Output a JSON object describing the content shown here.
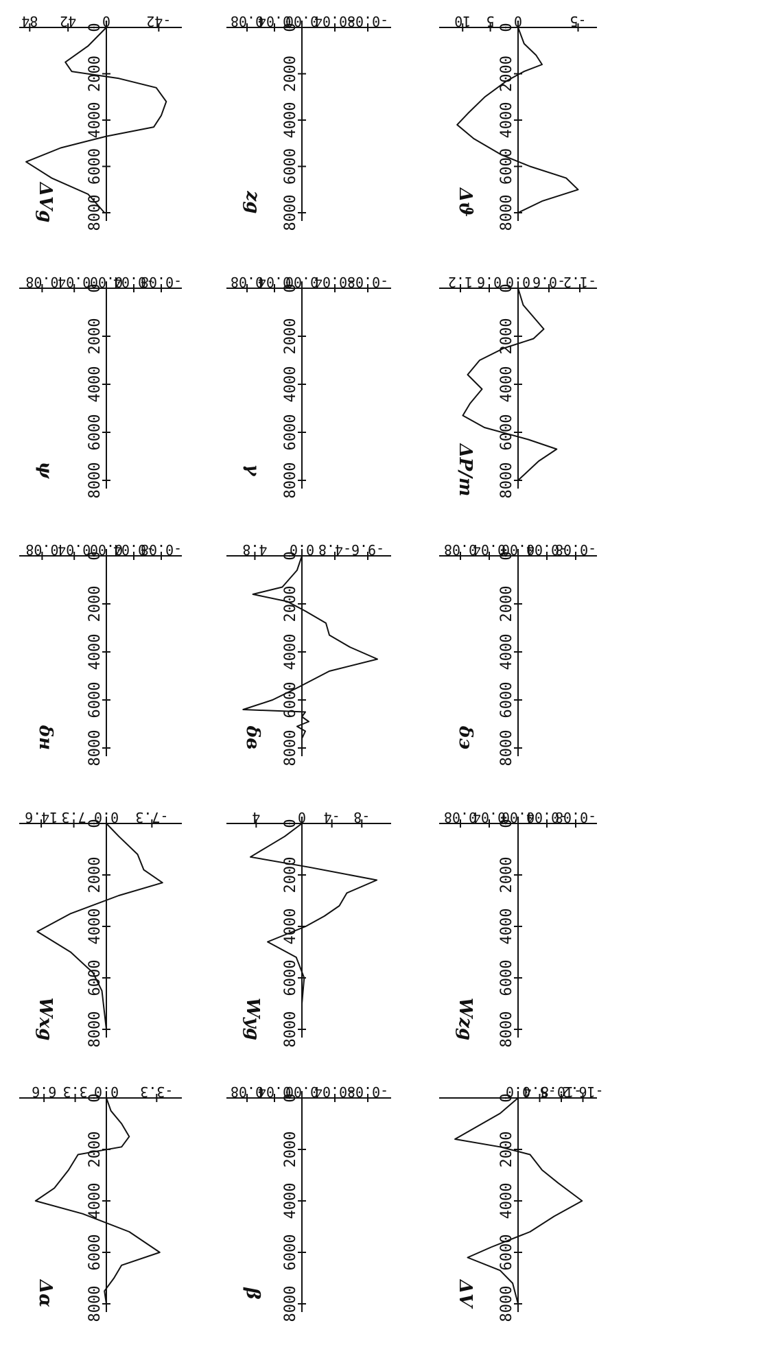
{
  "chart_data": [
    {
      "type": "line",
      "title": "ΔVg",
      "ylabel": "ΔVg",
      "x_ticks": [
        "0",
        "2000",
        "4000",
        "6000",
        "8000"
      ],
      "y_ticks": [
        "-42",
        "0",
        "42",
        "84"
      ],
      "xlim": [
        0,
        8000
      ],
      "ylim": [
        -55,
        88
      ],
      "series": [
        {
          "values": [
            [
              0,
              0
            ],
            [
              800,
              20
            ],
            [
              1500,
              45
            ],
            [
              1900,
              38
            ],
            [
              2200,
              -10
            ],
            [
              2600,
              -40
            ],
            [
              3200,
              -48
            ],
            [
              3800,
              -44
            ],
            [
              4300,
              -38
            ],
            [
              4700,
              0
            ],
            [
              5200,
              50
            ],
            [
              5800,
              88
            ],
            [
              6500,
              60
            ],
            [
              7200,
              20
            ],
            [
              8000,
              2
            ]
          ]
        }
      ]
    },
    {
      "type": "line",
      "title": "ψ",
      "ylabel": "ψ",
      "x_ticks": [
        "0",
        "2000",
        "4000",
        "6000",
        "8000"
      ],
      "y_ticks": [
        "-0.08",
        "-0.04",
        "0.00",
        "0.04",
        "0.08"
      ],
      "xlim": [
        0,
        8000
      ],
      "ylim": [
        -0.1,
        0.1
      ],
      "series": [
        {
          "values": [
            [
              0,
              0
            ],
            [
              8000,
              0
            ]
          ]
        }
      ]
    },
    {
      "type": "line",
      "title": "δн",
      "ylabel": "δн",
      "x_ticks": [
        "0",
        "2000",
        "4000",
        "6000",
        "8000"
      ],
      "y_ticks": [
        "-0.08",
        "-0.04",
        "0.00",
        "0.04",
        "0.08"
      ],
      "xlim": [
        0,
        8000
      ],
      "ylim": [
        -0.1,
        0.1
      ],
      "series": [
        {
          "values": [
            [
              0,
              0
            ],
            [
              8000,
              0
            ]
          ]
        }
      ]
    },
    {
      "type": "line",
      "title": "Wxg",
      "ylabel": "Wxg",
      "x_ticks": [
        "0",
        "2000",
        "4000",
        "6000",
        "8000"
      ],
      "y_ticks": [
        "-7.3",
        "0.0",
        "7.3",
        "14.6"
      ],
      "xlim": [
        0,
        8000
      ],
      "ylim": [
        -11,
        18
      ],
      "series": [
        {
          "values": [
            [
              0,
              0
            ],
            [
              500,
              -2
            ],
            [
              1200,
              -5
            ],
            [
              1800,
              -6
            ],
            [
              2300,
              -9
            ],
            [
              2800,
              -2
            ],
            [
              3500,
              8
            ],
            [
              4200,
              15.5
            ],
            [
              5000,
              8
            ],
            [
              5800,
              3
            ],
            [
              6500,
              1
            ],
            [
              8000,
              0
            ]
          ]
        }
      ]
    },
    {
      "type": "line",
      "title": "Δα",
      "ylabel": "Δα",
      "x_ticks": [
        "0",
        "2000",
        "4000",
        "6000",
        "8000"
      ],
      "y_ticks": [
        "-3.3",
        "0.0",
        "3.3",
        "6.6"
      ],
      "xlim": [
        0,
        8000
      ],
      "ylim": [
        -4.5,
        8.5
      ],
      "series": [
        {
          "values": [
            [
              0,
              0
            ],
            [
              500,
              -0.3
            ],
            [
              1000,
              -1
            ],
            [
              1500,
              -1.5
            ],
            [
              1900,
              -1
            ],
            [
              2200,
              3
            ],
            [
              2800,
              4
            ],
            [
              3500,
              5.5
            ],
            [
              4000,
              7.5
            ],
            [
              4500,
              2.5
            ],
            [
              5200,
              -1.5
            ],
            [
              6000,
              -3.5
            ],
            [
              6500,
              -1
            ],
            [
              7000,
              -0.5
            ],
            [
              7500,
              0.2
            ],
            [
              8000,
              0
            ]
          ]
        }
      ]
    },
    {
      "type": "line",
      "title": "zg",
      "ylabel": "zg",
      "x_ticks": [
        "0",
        "2000",
        "4000",
        "6000",
        "8000"
      ],
      "y_ticks": [
        "-0.08",
        "-0.04",
        "0.00",
        "0.04",
        "0.08"
      ],
      "xlim": [
        0,
        8000
      ],
      "ylim": [
        -0.1,
        0.1
      ],
      "series": [
        {
          "values": [
            [
              0,
              0
            ],
            [
              8000,
              0
            ]
          ]
        }
      ]
    },
    {
      "type": "line",
      "title": "γ",
      "ylabel": "γ",
      "x_ticks": [
        "0",
        "2000",
        "4000",
        "6000",
        "8000"
      ],
      "y_ticks": [
        "-0.08",
        "-0.04",
        "0.00",
        "0.04",
        "0.08"
      ],
      "xlim": [
        0,
        8000
      ],
      "ylim": [
        -0.1,
        0.1
      ],
      "series": [
        {
          "values": [
            [
              0,
              0
            ],
            [
              8000,
              0
            ]
          ]
        }
      ]
    },
    {
      "type": "line",
      "title": "δв",
      "ylabel": "δв",
      "x_ticks": [
        "0",
        "2000",
        "4000",
        "6000",
        "8000"
      ],
      "y_ticks": [
        "-9.6",
        "-4.8",
        "0.0",
        "4.8"
      ],
      "xlim": [
        0,
        8000
      ],
      "ylim": [
        -12,
        7
      ],
      "series": [
        {
          "values": [
            [
              0,
              0
            ],
            [
              600,
              0.5
            ],
            [
              1300,
              2
            ],
            [
              1600,
              5
            ],
            [
              1900,
              1.5
            ],
            [
              2300,
              -0.5
            ],
            [
              2800,
              -3.5
            ],
            [
              3300,
              -4
            ],
            [
              3800,
              -7
            ],
            [
              4300,
              -11
            ],
            [
              4800,
              -4
            ],
            [
              5500,
              0.5
            ],
            [
              6000,
              3
            ],
            [
              6400,
              6
            ],
            [
              6500,
              -0.5
            ],
            [
              6700,
              0
            ],
            [
              6900,
              -1
            ],
            [
              7100,
              0.5
            ],
            [
              7300,
              -0.5
            ],
            [
              7600,
              0
            ],
            [
              8000,
              0
            ]
          ]
        }
      ]
    },
    {
      "type": "line",
      "title": "Wyg",
      "ylabel": "Wyg",
      "x_ticks": [
        "0",
        "2000",
        "4000",
        "6000",
        "8000"
      ],
      "y_ticks": [
        "-8",
        "-4",
        "0",
        "4"
      ],
      "xlim": [
        0,
        8000
      ],
      "ylim": [
        -11,
        6
      ],
      "series": [
        {
          "values": [
            [
              0,
              0
            ],
            [
              500,
              1.5
            ],
            [
              900,
              3
            ],
            [
              1300,
              4.5
            ],
            [
              1700,
              -1
            ],
            [
              2200,
              -10
            ],
            [
              2700,
              -6
            ],
            [
              3200,
              -5
            ],
            [
              3600,
              -3
            ],
            [
              4000,
              -0.5
            ],
            [
              4600,
              3
            ],
            [
              5200,
              0.5
            ],
            [
              6000,
              -0.3
            ],
            [
              7000,
              0
            ],
            [
              8000,
              0
            ]
          ]
        }
      ]
    },
    {
      "type": "line",
      "title": "β",
      "ylabel": "β",
      "x_ticks": [
        "0",
        "2000",
        "4000",
        "6000",
        "8000"
      ],
      "y_ticks": [
        "-0.08",
        "-0.04",
        "0.00",
        "0.04",
        "0.08"
      ],
      "xlim": [
        0,
        8000
      ],
      "ylim": [
        -0.1,
        0.1
      ],
      "series": [
        {
          "values": [
            [
              0,
              0
            ],
            [
              8000,
              0
            ]
          ]
        }
      ]
    },
    {
      "type": "line",
      "title": "Δϑ",
      "ylabel": "Δϑ",
      "x_ticks": [
        "0",
        "2000",
        "4000",
        "6000",
        "8000"
      ],
      "y_ticks": [
        "-5",
        "0",
        "5",
        "10"
      ],
      "xlim": [
        0,
        8000
      ],
      "ylim": [
        -6,
        13
      ],
      "series": [
        {
          "values": [
            [
              0,
              0
            ],
            [
              700,
              -0.5
            ],
            [
              1200,
              -1.5
            ],
            [
              1600,
              -2
            ],
            [
              1900,
              -0.5
            ],
            [
              2300,
              2
            ],
            [
              3000,
              6
            ],
            [
              3700,
              9
            ],
            [
              4200,
              11
            ],
            [
              4800,
              8
            ],
            [
              5500,
              3
            ],
            [
              6000,
              -1
            ],
            [
              6500,
              -4
            ],
            [
              7000,
              -5
            ],
            [
              7500,
              -2
            ],
            [
              8000,
              0
            ]
          ]
        }
      ]
    },
    {
      "type": "line",
      "title": "ΔP/m",
      "ylabel": "ΔP/m",
      "x_ticks": [
        "0",
        "2000",
        "4000",
        "6000",
        "8000"
      ],
      "y_ticks": [
        "-1.2",
        "-0.6",
        "0.0",
        "0.6",
        "1.2"
      ],
      "xlim": [
        0,
        8000
      ],
      "ylim": [
        -1.4,
        1.5
      ],
      "series": [
        {
          "values": [
            [
              0,
              0
            ],
            [
              700,
              -0.1
            ],
            [
              1200,
              -0.3
            ],
            [
              1700,
              -0.5
            ],
            [
              2100,
              -0.3
            ],
            [
              2500,
              0.3
            ],
            [
              3000,
              0.8
            ],
            [
              3600,
              1.05
            ],
            [
              4200,
              0.75
            ],
            [
              4800,
              1.0
            ],
            [
              5300,
              1.15
            ],
            [
              5800,
              0.7
            ],
            [
              6300,
              -0.2
            ],
            [
              6700,
              -0.75
            ],
            [
              7200,
              -0.4
            ],
            [
              8000,
              0
            ]
          ]
        }
      ]
    },
    {
      "type": "line",
      "title": "δэ",
      "ylabel": "δэ",
      "x_ticks": [
        "0",
        "2000",
        "4000",
        "6000",
        "8000"
      ],
      "y_ticks": [
        "-0.08",
        "-0.04",
        "0.00",
        "0.04",
        "0.08"
      ],
      "xlim": [
        0,
        8000
      ],
      "ylim": [
        -0.1,
        0.1
      ],
      "series": [
        {
          "values": [
            [
              0,
              0
            ],
            [
              8000,
              0
            ]
          ]
        }
      ]
    },
    {
      "type": "line",
      "title": "Wzg",
      "ylabel": "Wzg",
      "x_ticks": [
        "0",
        "2000",
        "4000",
        "6000",
        "8000"
      ],
      "y_ticks": [
        "-0.08",
        "-0.04",
        "0.00",
        "0.04",
        "0.08"
      ],
      "xlim": [
        0,
        8000
      ],
      "ylim": [
        -0.1,
        0.1
      ],
      "series": [
        {
          "values": [
            [
              0,
              0
            ],
            [
              8000,
              0
            ]
          ]
        }
      ]
    },
    {
      "type": "line",
      "title": "ΔV",
      "ylabel": "ΔV",
      "x_ticks": [
        "0",
        "2000",
        "4000",
        "6000",
        "8000"
      ],
      "y_ticks": [
        "-16.2",
        "-10.8",
        "-5.4",
        "0.0"
      ],
      "xlim": [
        0,
        8000
      ],
      "ylim": [
        -18,
        4
      ],
      "series": [
        {
          "values": [
            [
              0,
              0
            ],
            [
              600,
              1
            ],
            [
              1200,
              2.5
            ],
            [
              1600,
              3.5
            ],
            [
              1900,
              1
            ],
            [
              2200,
              -3
            ],
            [
              2800,
              -6
            ],
            [
              3300,
              -10
            ],
            [
              4000,
              -16
            ],
            [
              4600,
              -9
            ],
            [
              5200,
              -3
            ],
            [
              5800,
              1.5
            ],
            [
              6200,
              2.8
            ],
            [
              6700,
              1
            ],
            [
              7200,
              0.3
            ],
            [
              8000,
              0
            ]
          ]
        }
      ]
    }
  ]
}
